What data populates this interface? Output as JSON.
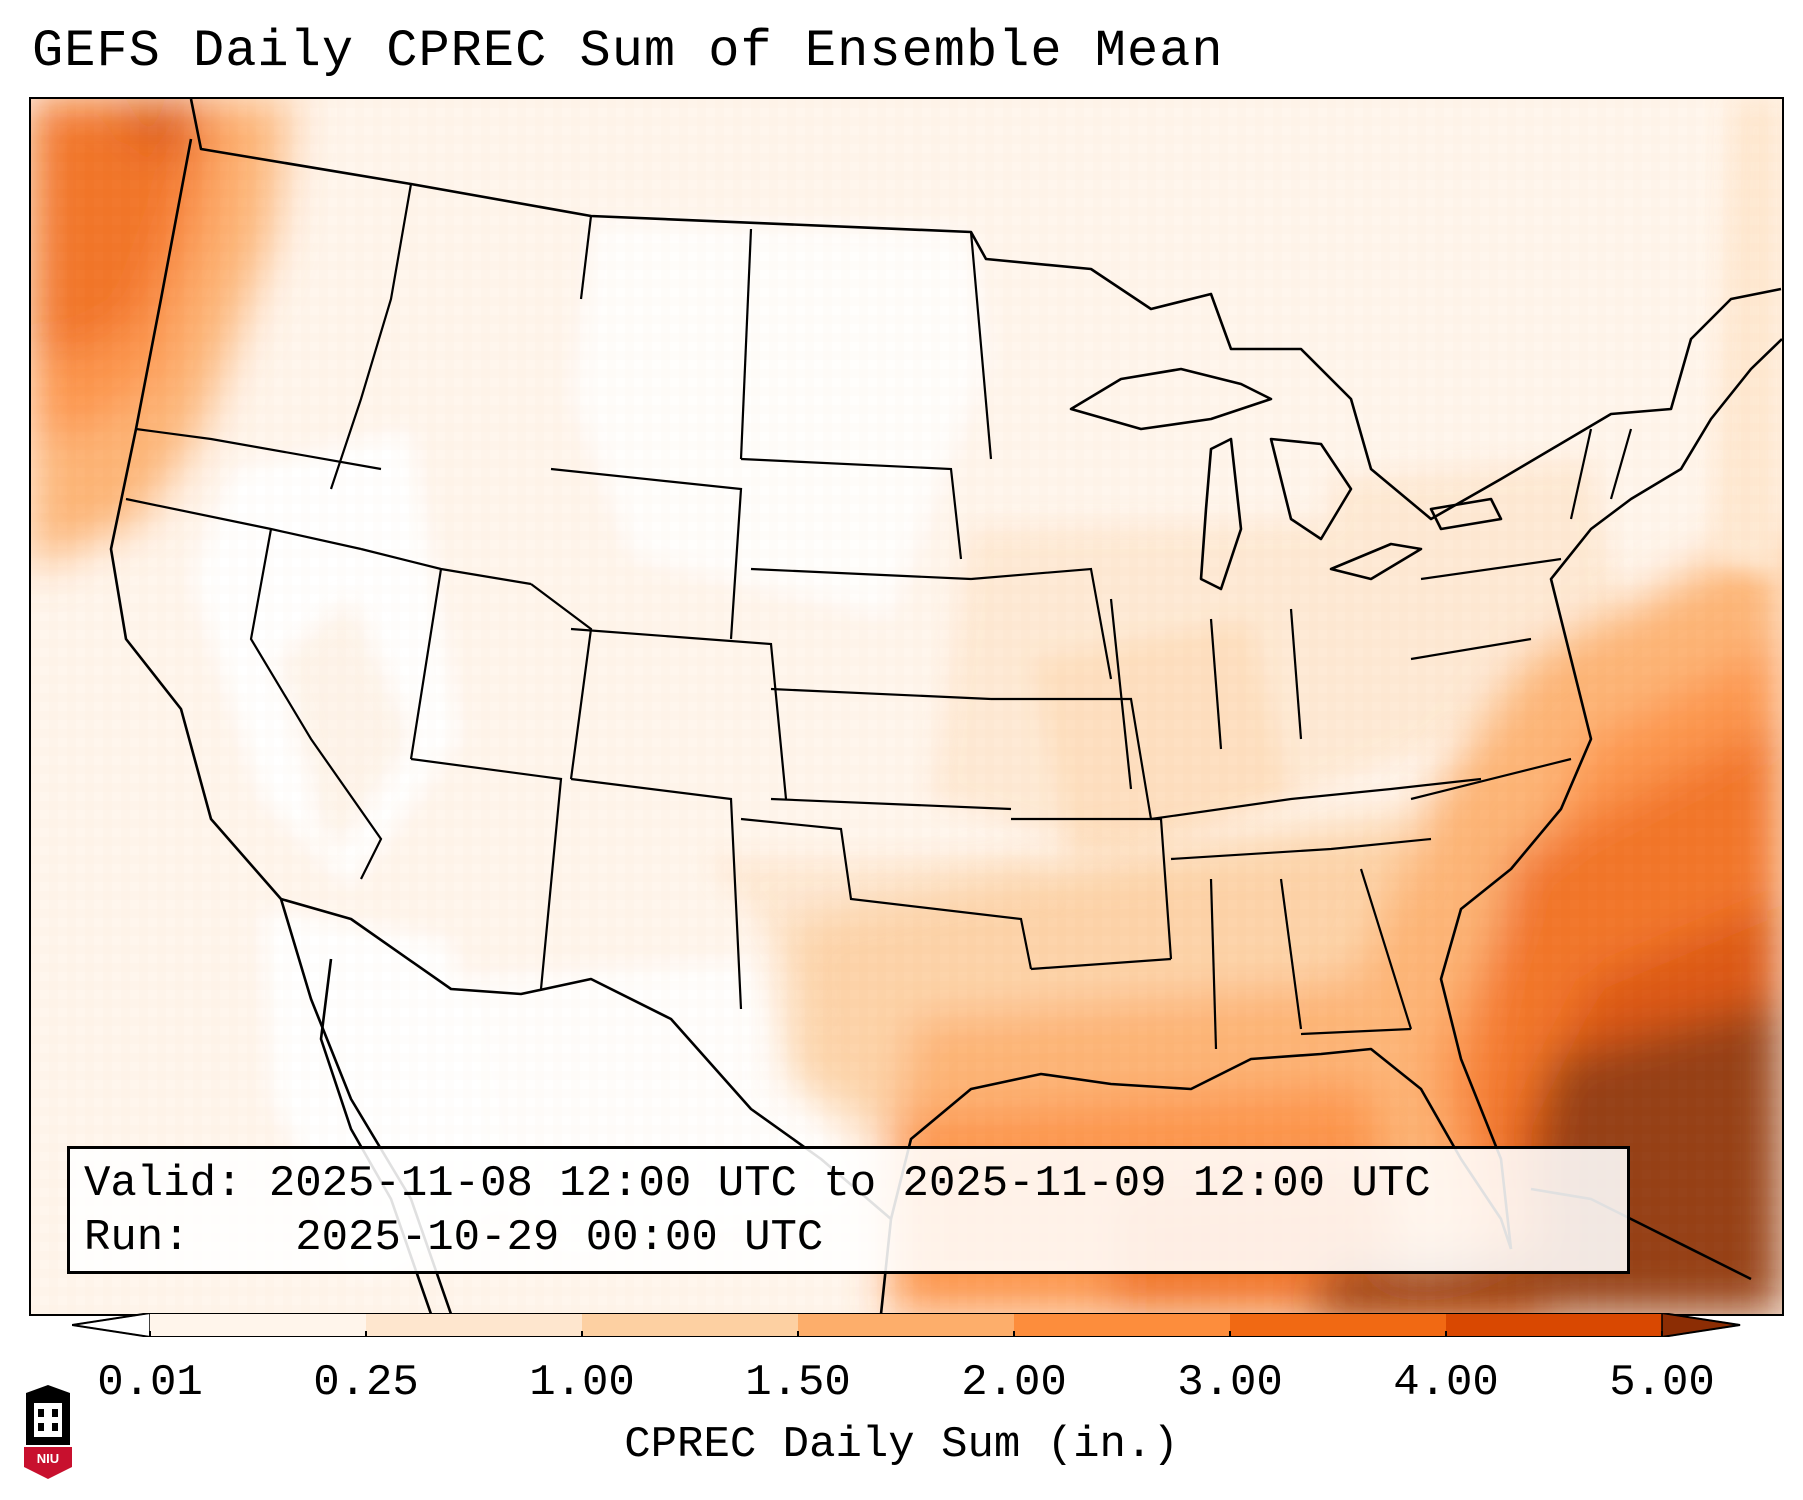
{
  "title": "GEFS Daily CPREC Sum of Ensemble Mean",
  "info": {
    "valid_label": "Valid:",
    "valid_text": "2025-11-08 12:00 UTC to 2025-11-09 12:00 UTC",
    "run_label": "Run:",
    "run_text": "2025-10-29 00:00 UTC"
  },
  "colorbar": {
    "label": "CPREC Daily Sum (in.)",
    "ticks": [
      "0.01",
      "0.25",
      "1.00",
      "1.50",
      "2.00",
      "3.00",
      "4.00",
      "5.00"
    ],
    "levels": [
      0.01,
      0.25,
      1.0,
      1.5,
      2.0,
      3.0,
      4.0,
      5.0
    ],
    "colors": [
      "#fff5eb",
      "#fee6ce",
      "#fdd0a2",
      "#fdae6b",
      "#fd8d3c",
      "#f16913",
      "#d94801",
      "#8c2d04"
    ],
    "extend": "both"
  },
  "logo": {
    "text": "NIU",
    "colors": {
      "shield": "#000000",
      "band": "#c8102e"
    }
  },
  "map": {
    "region": "CONUS",
    "projection": "Lambert Conformal",
    "max_precip_area": "Caribbean / Bahamas region"
  }
}
